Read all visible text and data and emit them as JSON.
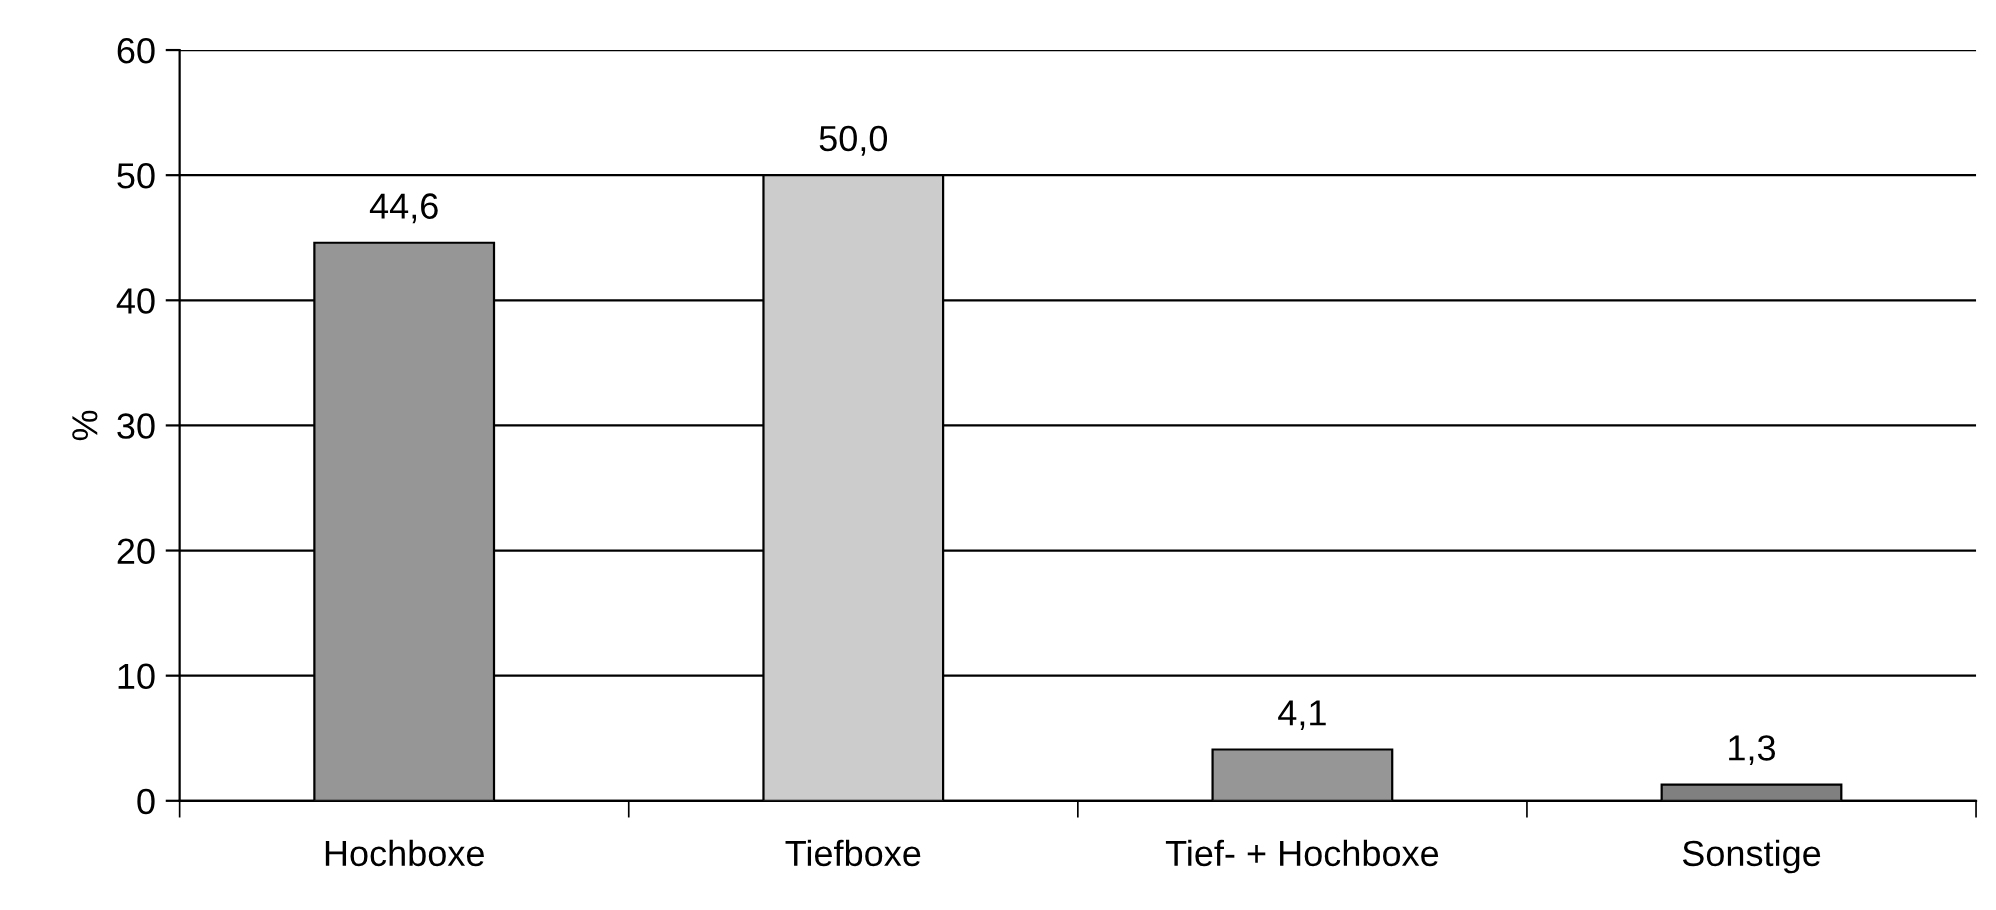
{
  "chart_data": {
    "type": "bar",
    "ylabel": "%",
    "categories": [
      "Hochboxe",
      "Tiefboxe",
      "Tief- + Hochboxe",
      "Sonstige"
    ],
    "values": [
      44.6,
      50.0,
      4.1,
      1.3
    ],
    "colors": [
      "#969696",
      "#cccccc",
      "#969696",
      "#808080"
    ],
    "value_labels": [
      "44,6",
      "50,0",
      "4,1",
      "1,3"
    ],
    "ylim": [
      0,
      60
    ],
    "yticks": [
      0,
      10,
      20,
      30,
      40,
      50,
      60
    ],
    "grid": "y",
    "legend": false
  }
}
